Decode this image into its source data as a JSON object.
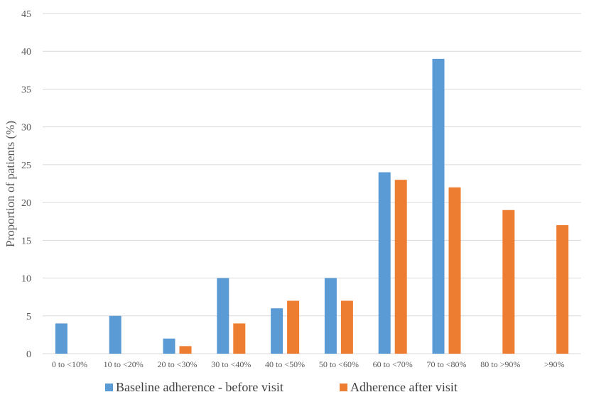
{
  "chart_data": {
    "type": "bar",
    "categories": [
      "0 to <10%",
      "10 to <20%",
      "20 to <30%",
      "30 to <40%",
      "40 to <50%",
      "50 to <60%",
      "60 to <70%",
      "70 to <80%",
      "80 to >90%",
      ">90%"
    ],
    "series": [
      {
        "name": "Baseline adherence - before visit",
        "color": "#5b9bd5",
        "values": [
          4,
          5,
          2,
          10,
          6,
          10,
          24,
          39,
          0,
          0
        ]
      },
      {
        "name": "Adherence after visit",
        "color": "#ed7d31",
        "values": [
          0,
          0,
          1,
          4,
          7,
          7,
          23,
          22,
          19,
          17
        ]
      }
    ],
    "ylabel": "Proportion of patients (%)",
    "xlabel": "",
    "ylim": [
      0,
      45
    ],
    "yticks": [
      0,
      5,
      10,
      15,
      20,
      25,
      30,
      35,
      40,
      45
    ],
    "grid": true,
    "legend_position": "bottom"
  }
}
